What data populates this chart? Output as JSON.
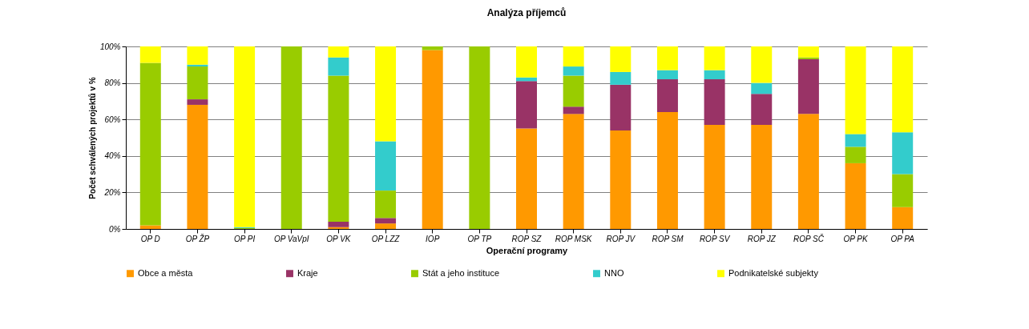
{
  "chart_data": {
    "type": "bar",
    "title": "Analýza příjemců",
    "xlabel": "Operační programy",
    "ylabel": "Počet schválených projektů v %",
    "categories": [
      "OP D",
      "OP ŽP",
      "OP PI",
      "OP VaVpI",
      "OP VK",
      "OP LZZ",
      "IOP",
      "OP TP",
      "ROP SZ",
      "ROP MSK",
      "ROP JV",
      "ROP SM",
      "ROP SV",
      "ROP JZ",
      "ROP SČ",
      "OP PK",
      "OP PA"
    ],
    "stacked": true,
    "series": [
      {
        "name": "Obce a města",
        "color": "#ff9900",
        "values": [
          2,
          68,
          0,
          0,
          1,
          3,
          98,
          0,
          55,
          63,
          54,
          64,
          57,
          57,
          63,
          36,
          12
        ]
      },
      {
        "name": "Kraje",
        "color": "#993366",
        "values": [
          0,
          3,
          0,
          0,
          3,
          3,
          0,
          0,
          26,
          4,
          25,
          18,
          25,
          17,
          30,
          0,
          0
        ]
      },
      {
        "name": "Stát a jeho instituce",
        "color": "#99cc00",
        "values": [
          89,
          18,
          0.5,
          100,
          80,
          15,
          2,
          100,
          0,
          17,
          0,
          0,
          0,
          0,
          1,
          9,
          18
        ]
      },
      {
        "name": "NNO",
        "color": "#33cccc",
        "values": [
          0,
          1,
          0.5,
          0,
          10,
          27,
          0,
          0,
          2,
          5,
          7,
          5,
          5,
          6,
          0,
          7,
          23
        ]
      },
      {
        "name": "Podnikatelské subjekty",
        "color": "#ffff00",
        "values": [
          9,
          10,
          99,
          0,
          6,
          52,
          0,
          0,
          17,
          11,
          14,
          13,
          13,
          20,
          6,
          48,
          47
        ]
      }
    ],
    "ylim": [
      0,
      100
    ],
    "yticks": [
      {
        "value": 0,
        "label": "0%"
      },
      {
        "value": 20,
        "label": "20%"
      },
      {
        "value": 40,
        "label": "40%"
      },
      {
        "value": 60,
        "label": "60%"
      },
      {
        "value": 80,
        "label": "80%"
      },
      {
        "value": 100,
        "label": "100%"
      }
    ],
    "grid": "y",
    "legend": "bottom"
  }
}
